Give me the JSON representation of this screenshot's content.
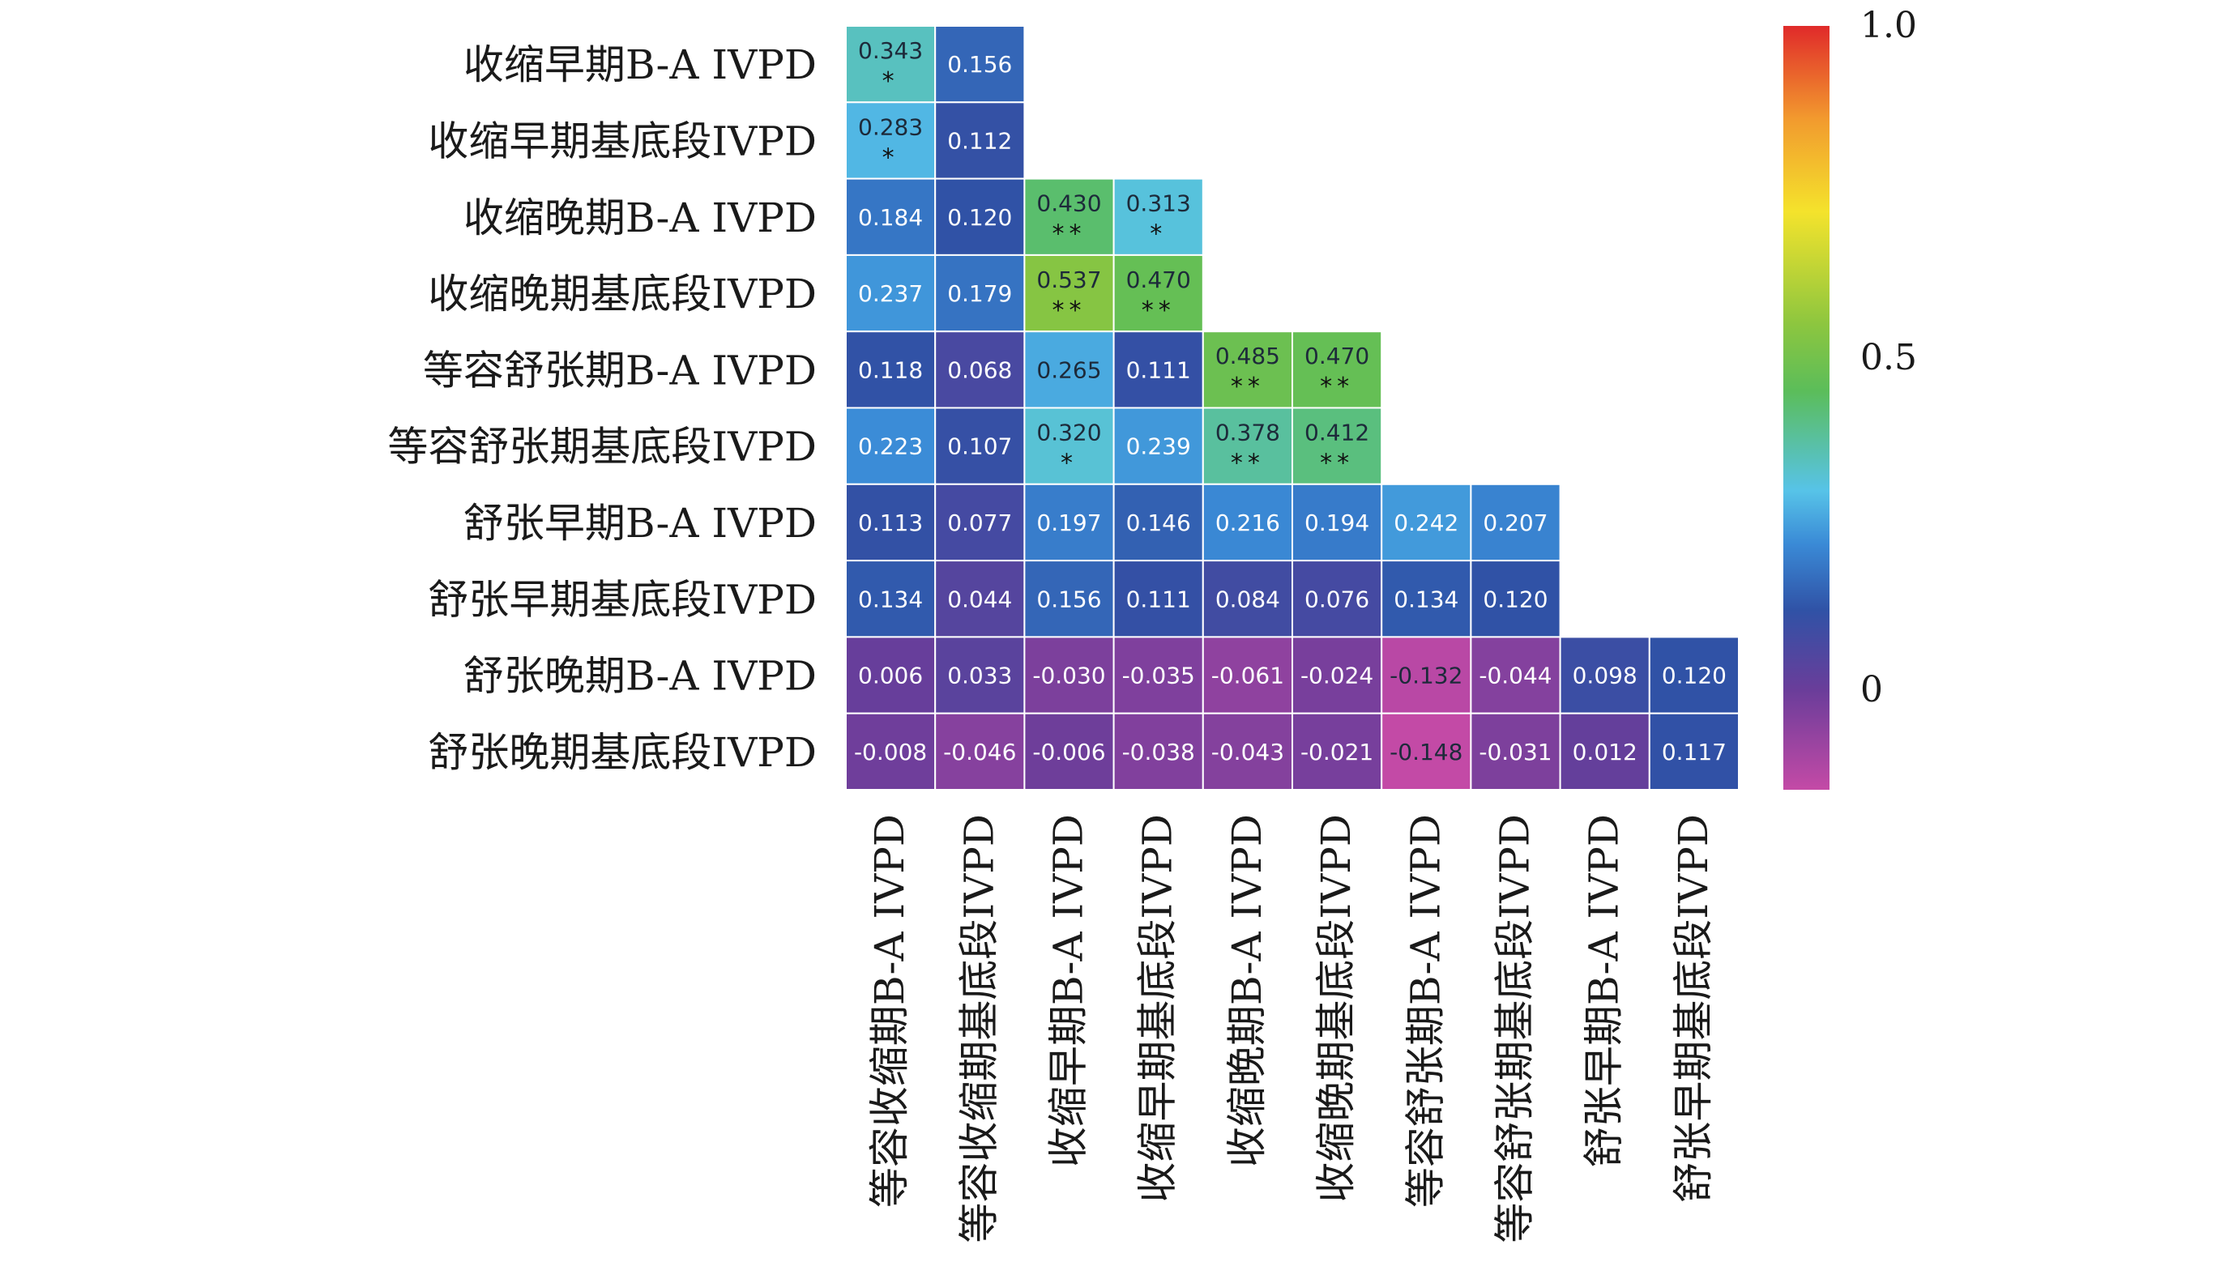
{
  "chart_data": {
    "type": "heatmap",
    "title": "",
    "xlabel": "",
    "ylabel": "",
    "rows": [
      "收缩早期B-A IVPD",
      "收缩早期基底段IVPD",
      "收缩晚期B-A IVPD",
      "收缩晚期基底段IVPD",
      "等容舒张期B-A IVPD",
      "等容舒张期基底段IVPD",
      "舒张早期B-A IVPD",
      "舒张早期基底段IVPD",
      "舒张晚期B-A IVPD",
      "舒张晚期基底段IVPD"
    ],
    "columns": [
      "等容收缩期B-A IVPD",
      "等容收缩期基底段IVPD",
      "收缩早期B-A IVPD",
      "收缩早期基底段IVPD",
      "收缩晚期B-A IVPD",
      "收缩晚期基底段IVPD",
      "等容舒张期B-A IVPD",
      "等容舒张期基底段IVPD",
      "舒张早期B-A IVPD",
      "舒张早期基底段IVPD"
    ],
    "values": [
      [
        0.343,
        0.156,
        null,
        null,
        null,
        null,
        null,
        null,
        null,
        null
      ],
      [
        0.283,
        0.112,
        null,
        null,
        null,
        null,
        null,
        null,
        null,
        null
      ],
      [
        0.184,
        0.12,
        0.43,
        0.313,
        null,
        null,
        null,
        null,
        null,
        null
      ],
      [
        0.237,
        0.179,
        0.537,
        0.47,
        null,
        null,
        null,
        null,
        null,
        null
      ],
      [
        0.118,
        0.068,
        0.265,
        0.111,
        0.485,
        0.47,
        null,
        null,
        null,
        null
      ],
      [
        0.223,
        0.107,
        0.32,
        0.239,
        0.378,
        0.412,
        null,
        null,
        null,
        null
      ],
      [
        0.113,
        0.077,
        0.197,
        0.146,
        0.216,
        0.194,
        0.242,
        0.207,
        null,
        null
      ],
      [
        0.134,
        0.044,
        0.156,
        0.111,
        0.084,
        0.076,
        0.134,
        0.12,
        null,
        null
      ],
      [
        0.006,
        0.033,
        -0.03,
        -0.035,
        -0.061,
        -0.024,
        -0.132,
        -0.044,
        0.098,
        0.12
      ],
      [
        -0.008,
        -0.046,
        -0.006,
        -0.038,
        -0.043,
        -0.021,
        -0.148,
        -0.031,
        0.012,
        0.117
      ]
    ],
    "labels": [
      [
        "0.343",
        "0.156",
        null,
        null,
        null,
        null,
        null,
        null,
        null,
        null
      ],
      [
        "0.283",
        "0.112",
        null,
        null,
        null,
        null,
        null,
        null,
        null,
        null
      ],
      [
        "0.184",
        "0.120",
        "0.430",
        "0.313",
        null,
        null,
        null,
        null,
        null,
        null
      ],
      [
        "0.237",
        "0.179",
        "0.537",
        "0.470",
        null,
        null,
        null,
        null,
        null,
        null
      ],
      [
        "0.118",
        "0.068",
        "0.265",
        "0.111",
        "0.485",
        "0.470",
        null,
        null,
        null,
        null
      ],
      [
        "0.223",
        "0.107",
        "0.320",
        "0.239",
        "0.378",
        "0.412",
        null,
        null,
        null,
        null
      ],
      [
        "0.113",
        "0.077",
        "0.197",
        "0.146",
        "0.216",
        "0.194",
        "0.242",
        "0.207",
        null,
        null
      ],
      [
        "0.134",
        "0.044",
        "0.156",
        "0.111",
        "0.084",
        "0.076",
        "0.134",
        "0.120",
        null,
        null
      ],
      [
        "0.006",
        "0.033",
        "-0.030",
        "-0.035",
        "-0.061",
        "-0.024",
        "-0.132",
        "-0.044",
        "0.098",
        "0.120"
      ],
      [
        "-0.008",
        "-0.046",
        "-0.006",
        "-0.038",
        "-0.043",
        "-0.021",
        "-0.148",
        "-0.031",
        "0.012",
        "0.117"
      ]
    ],
    "significance": [
      [
        "*",
        "",
        null,
        null,
        null,
        null,
        null,
        null,
        null,
        null
      ],
      [
        "*",
        "",
        null,
        null,
        null,
        null,
        null,
        null,
        null,
        null
      ],
      [
        "",
        "",
        "**",
        "*",
        null,
        null,
        null,
        null,
        null,
        null
      ],
      [
        "",
        "",
        "**",
        "**",
        null,
        null,
        null,
        null,
        null,
        null
      ],
      [
        "",
        "",
        "",
        "",
        "**",
        "**",
        null,
        null,
        null,
        null
      ],
      [
        "",
        "",
        "*",
        "",
        "**",
        "**",
        null,
        null,
        null,
        null
      ],
      [
        "",
        "",
        "",
        "",
        "",
        "",
        "",
        "",
        null,
        null
      ],
      [
        "",
        "",
        "",
        "",
        "",
        "",
        "",
        "",
        null,
        null
      ],
      [
        "",
        "",
        "",
        "",
        "",
        "",
        "",
        "",
        "",
        ""
      ],
      [
        "",
        "",
        "",
        "",
        "",
        "",
        "",
        "",
        "",
        ""
      ]
    ],
    "colorbar": {
      "range": [
        -0.15,
        1.0
      ],
      "tick_values": [
        0,
        0.5,
        1.0
      ],
      "tick_labels": [
        "0",
        "0.5",
        "1.0"
      ],
      "colors": [
        "#c44aa6",
        "#6a3d9a",
        "#3052a6",
        "#3a8ad6",
        "#57c3e8",
        "#5bbd5a",
        "#8cc63f",
        "#f4e32c",
        "#f29a2e",
        "#e02a2a"
      ],
      "color_stops": [
        -0.15,
        0.0,
        0.12,
        0.22,
        0.3,
        0.45,
        0.55,
        0.72,
        0.86,
        1.0
      ]
    },
    "grid": true,
    "legend": "right"
  }
}
